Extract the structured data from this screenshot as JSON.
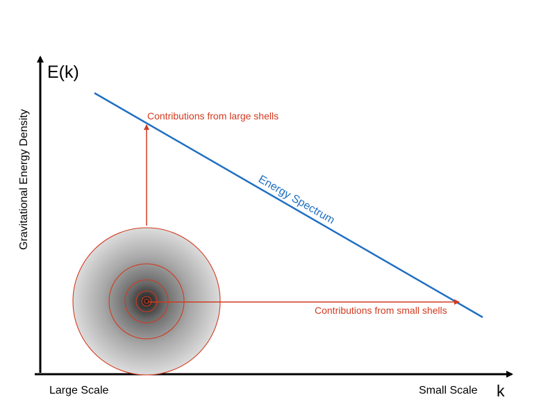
{
  "axes": {
    "y_label": "E(k)",
    "y_description": "Gravitational Energy Density",
    "x_label": "k",
    "x_left": "Large Scale",
    "x_right": "Small Scale"
  },
  "spectrum": {
    "label": "Energy Spectrum",
    "color": "#1f6fc2"
  },
  "annotations": {
    "large_shells": "Contributions from large shells",
    "small_shells": "Contributions from small shells",
    "color": "#d23a1f"
  }
}
